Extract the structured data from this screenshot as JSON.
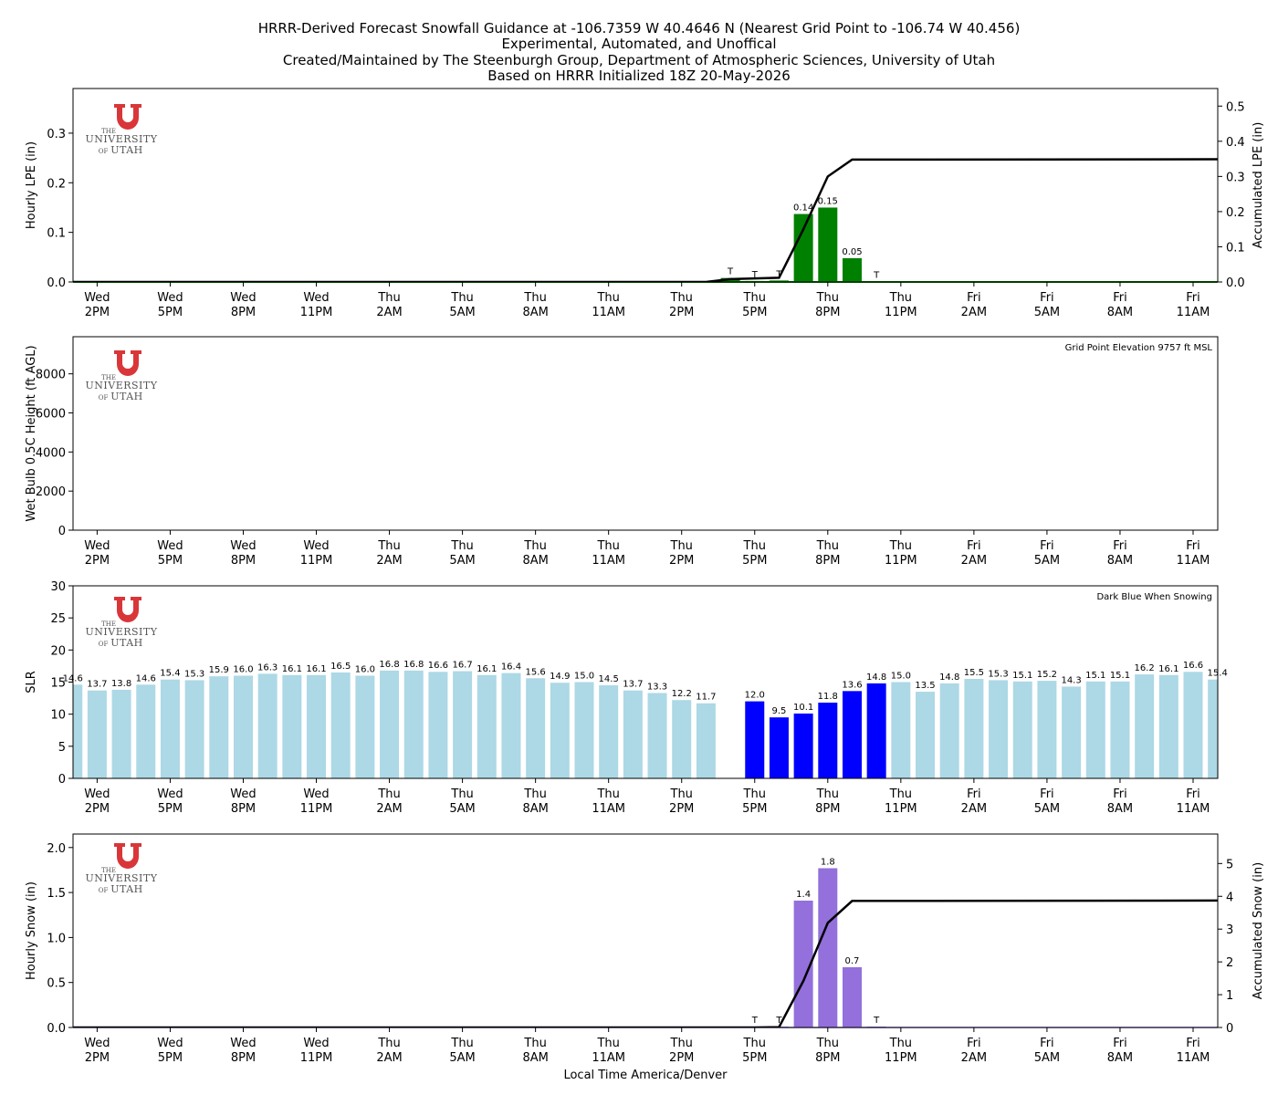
{
  "title_lines": [
    "HRRR-Derived Forecast Snowfall Guidance at -106.7359 W 40.4646 N (Nearest Grid Point to -106.74 W 40.456)",
    "Experimental, Automated, and Unoffical",
    "Created/Maintained by The Steenburgh Group, Department of Atmospheric Sciences, University of Utah",
    "Based on HRRR Initialized 18Z 20-May-2026"
  ],
  "logo": {
    "top": "THE",
    "middle": "UNIVERSITY",
    "of": "OF",
    "bottom": "UTAH",
    "color": "#d9363a"
  },
  "xlabel": "Local Time America/Denver",
  "time_ticks": {
    "hours_from_start": [
      0,
      3,
      6,
      9,
      12,
      15,
      18,
      21,
      24,
      27,
      30,
      33,
      36,
      39,
      42,
      45
    ],
    "day": [
      "Wed",
      "Wed",
      "Wed",
      "Wed",
      "Thu",
      "Thu",
      "Thu",
      "Thu",
      "Thu",
      "Thu",
      "Thu",
      "Thu",
      "Fri",
      "Fri",
      "Fri",
      "Fri"
    ],
    "time": [
      "2PM",
      "5PM",
      "8PM",
      "11PM",
      "2AM",
      "5AM",
      "8AM",
      "11AM",
      "2PM",
      "5PM",
      "8PM",
      "11PM",
      "2AM",
      "5AM",
      "8AM",
      "11AM"
    ]
  },
  "chart_data": [
    {
      "type": "bar",
      "name": "hourly-lpe",
      "ylabel": "Hourly LPE (in)",
      "y2label": "Accumulated LPE (in)",
      "ylim": [
        0,
        0.39
      ],
      "yticks": [
        0.0,
        0.1,
        0.2,
        0.3
      ],
      "y2lim": [
        0,
        0.55
      ],
      "y2ticks": [
        0.0,
        0.1,
        0.2,
        0.3,
        0.4,
        0.5
      ],
      "bar_color": "#008000",
      "x_hours": [
        26,
        27,
        28,
        29,
        30,
        31,
        32
      ],
      "values": [
        0.008,
        0.002,
        0.003,
        0.137,
        0.15,
        0.048,
        0.001
      ],
      "bar_labels": [
        "T",
        "T",
        "T",
        "0.14",
        "0.15",
        "0.05",
        "T"
      ],
      "accum_x_hours": [
        -1,
        25,
        26,
        27,
        28,
        29,
        30,
        31,
        47
      ],
      "accum_values": [
        0,
        0,
        0.008,
        0.01,
        0.012,
        0.15,
        0.3,
        0.348,
        0.349
      ],
      "line_color": "#000000"
    },
    {
      "type": "bar",
      "name": "wet-bulb-height",
      "ylabel": "Wet Bulb 0.5C Height (ft AGL)",
      "ylim": [
        0,
        9900
      ],
      "yticks": [
        0,
        2000,
        4000,
        6000,
        8000
      ],
      "x_hours": [],
      "values": [],
      "note": "Grid Point Elevation 9757 ft MSL"
    },
    {
      "type": "bar",
      "name": "slr",
      "ylabel": "SLR",
      "ylim": [
        0,
        30
      ],
      "yticks": [
        0,
        5,
        10,
        15,
        20,
        25,
        30
      ],
      "note": "Dark Blue When Snowing",
      "colors": {
        "light": "#add8e6",
        "snow": "#0000ff"
      },
      "x_hours": [
        -1,
        0,
        1,
        2,
        3,
        4,
        5,
        6,
        7,
        8,
        9,
        10,
        11,
        12,
        13,
        14,
        15,
        16,
        17,
        18,
        19,
        20,
        21,
        22,
        23,
        24,
        25,
        27,
        28,
        29,
        30,
        31,
        32,
        33,
        34,
        35,
        36,
        37,
        38,
        39,
        40,
        41,
        42,
        43,
        44,
        45,
        46
      ],
      "values": [
        14.6,
        13.7,
        13.8,
        14.6,
        15.4,
        15.3,
        15.9,
        16.0,
        16.3,
        16.1,
        16.1,
        16.5,
        16.0,
        16.8,
        16.8,
        16.6,
        16.7,
        16.1,
        16.4,
        15.6,
        14.9,
        15.0,
        14.5,
        13.7,
        13.3,
        12.2,
        11.7,
        12.0,
        9.5,
        10.1,
        11.8,
        13.6,
        14.8,
        15.0,
        13.5,
        14.8,
        15.5,
        15.3,
        15.1,
        15.2,
        14.3,
        15.1,
        15.1,
        16.2,
        16.1,
        16.6,
        15.4
      ],
      "labels": [
        "14.6",
        "13.7",
        "13.8",
        "14.6",
        "15.4",
        "15.3",
        "15.9",
        "16.0",
        "16.3",
        "16.1",
        "16.1",
        "16.5",
        "16.0",
        "16.8",
        "16.8",
        "16.6",
        "16.7",
        "16.1",
        "16.4",
        "15.6",
        "14.9",
        "15.0",
        "14.5",
        "13.7",
        "13.3",
        "12.2",
        "11.7",
        "12.0",
        "9.5",
        "10.1",
        "11.8",
        "13.6",
        "14.8",
        "15.0",
        "13.5",
        "14.8",
        "15.5",
        "15.3",
        "15.1",
        "15.2",
        "14.3",
        "15.1",
        "15.1",
        "16.2",
        "16.1",
        "16.6",
        "15.4"
      ],
      "snowing": [
        false,
        false,
        false,
        false,
        false,
        false,
        false,
        false,
        false,
        false,
        false,
        false,
        false,
        false,
        false,
        false,
        false,
        false,
        false,
        false,
        false,
        false,
        false,
        false,
        false,
        false,
        false,
        true,
        true,
        true,
        true,
        true,
        true,
        false,
        false,
        false,
        false,
        false,
        false,
        false,
        false,
        false,
        false,
        false,
        false,
        false,
        false
      ]
    },
    {
      "type": "bar",
      "name": "hourly-snow",
      "ylabel": "Hourly Snow (in)",
      "y2label": "Accumulated Snow (in)",
      "ylim": [
        0,
        2.15
      ],
      "yticks": [
        0.0,
        0.5,
        1.0,
        1.5,
        2.0
      ],
      "y2lim": [
        0,
        5.9
      ],
      "y2ticks": [
        0,
        1,
        2,
        3,
        4,
        5
      ],
      "bar_color": "#9370db",
      "x_hours": [
        27,
        28,
        29,
        30,
        31,
        32
      ],
      "values": [
        0.01,
        0.01,
        1.41,
        1.77,
        0.67,
        0.01
      ],
      "bar_labels": [
        "T",
        "T",
        "1.4",
        "1.8",
        "0.7",
        "T"
      ],
      "accum_x_hours": [
        -1,
        27,
        28,
        29,
        30,
        31,
        47
      ],
      "accum_values": [
        0,
        0,
        0.01,
        1.42,
        3.19,
        3.86,
        3.87
      ],
      "line_color": "#000000"
    }
  ]
}
